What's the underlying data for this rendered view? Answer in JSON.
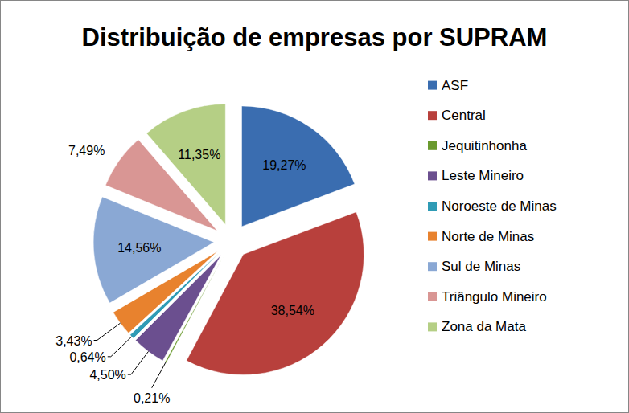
{
  "chart_data": {
    "type": "pie",
    "title": "Distribuição de empresas por SUPRAM",
    "categories": [
      "ASF",
      "Central",
      "Jequitinhonha",
      "Leste Mineiro",
      "Noroeste de Minas",
      "Norte de Minas",
      "Sul de Minas",
      "Triângulo Mineiro",
      "Zona da Mata"
    ],
    "values": [
      19.27,
      38.54,
      0.21,
      4.5,
      0.64,
      3.43,
      14.56,
      7.49,
      11.35
    ],
    "value_labels": [
      "19,27%",
      "38,54%",
      "0,21%",
      "4,50%",
      "0,64%",
      "3,43%",
      "14,56%",
      "7,49%",
      "11,35%"
    ],
    "colors": [
      "#3a6db0",
      "#b8403c",
      "#6a9a2e",
      "#6b4f8f",
      "#2f9bb5",
      "#e8822e",
      "#8aa8d4",
      "#d99694",
      "#b5cf85"
    ],
    "data_labels": true,
    "legend": "right"
  }
}
